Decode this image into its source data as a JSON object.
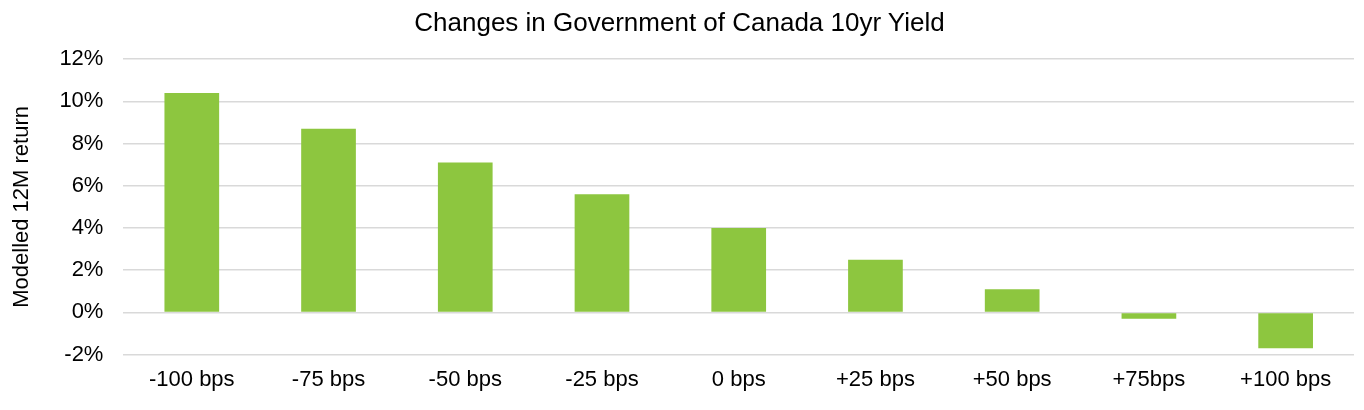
{
  "chart_data": {
    "type": "bar",
    "title": "Changes in Government of Canada 10yr Yield",
    "ylabel": "Modelled 12M return",
    "categories": [
      "-100 bps",
      "-75 bps",
      "-50 bps",
      "-25 bps",
      "0 bps",
      "+25 bps",
      "+50 bps",
      "+75bps",
      "+100 bps"
    ],
    "values": [
      10.4,
      8.7,
      7.1,
      5.6,
      4.0,
      2.5,
      1.1,
      -0.3,
      -1.7
    ],
    "color": "#8dc63f",
    "ylim": [
      -2,
      12
    ],
    "yticks": [
      {
        "value": -2,
        "label": "-2%"
      },
      {
        "value": 0,
        "label": "0%"
      },
      {
        "value": 2,
        "label": "2%"
      },
      {
        "value": 4,
        "label": "4%"
      },
      {
        "value": 6,
        "label": "6%"
      },
      {
        "value": 8,
        "label": "8%"
      },
      {
        "value": 10,
        "label": "10%"
      },
      {
        "value": 12,
        "label": "12%"
      }
    ],
    "grid": "y",
    "legend": false
  }
}
